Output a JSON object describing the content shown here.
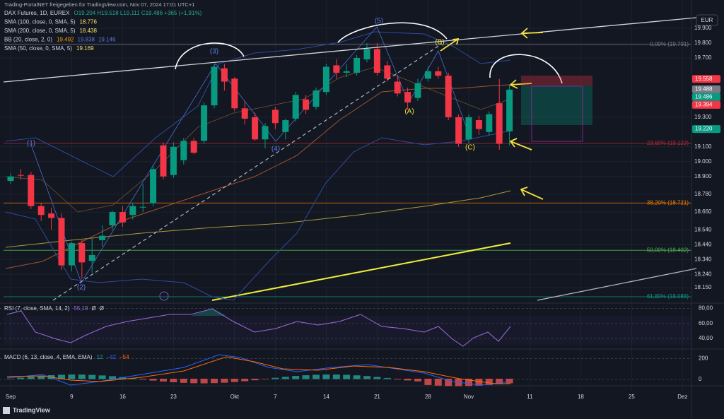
{
  "ui": {
    "header": "Trading-PortalNET freigegeben für TradingView.com, Nov 07, 2024 17:01 UTC+1",
    "currency": "EUR",
    "brand": "TradingView",
    "legend": [
      {
        "label": "DAX Futures, 1D, EUREX",
        "values": [
          {
            "text": "O19.204 H19.518 L19.111 C19.486 +365 (+1,91%)",
            "color": "#22ab94"
          }
        ]
      },
      {
        "label": "SMA (100, close, 0, SMA, 5)",
        "values": [
          {
            "text": "18.776",
            "color": "#f7e26b"
          }
        ]
      },
      {
        "label": "SMA (200, close, 0, SMA, 5)",
        "values": [
          {
            "text": "18.438",
            "color": "#f7e26b"
          }
        ]
      },
      {
        "label": "BB (20, close, 2, 0)",
        "values": [
          {
            "text": "19.492",
            "color": "#ff9800"
          },
          {
            "text": "19.838",
            "color": "#5b7be0"
          },
          {
            "text": "19.146",
            "color": "#5b7be0"
          }
        ]
      },
      {
        "label": "SMA (50, close, 0, SMA, 5)",
        "values": [
          {
            "text": "19.169",
            "color": "#f7e26b"
          }
        ]
      }
    ],
    "waves": [
      "(1)",
      "(2)",
      "(3)",
      "(4)",
      "(5)",
      "(A)",
      "(B)",
      "(C)"
    ],
    "rsi": {
      "title": "RSI (7, close, SMA, 14, 2)",
      "values": [
        {
          "text": "55,19",
          "color": "#9c6ade"
        },
        {
          "text": "Ø",
          "color": "#d1d4dc"
        },
        {
          "text": "Ø",
          "color": "#d1d4dc"
        }
      ],
      "ylim": [
        26,
        87
      ],
      "yticks": [
        {
          "value": 80,
          "label": "80,00"
        },
        {
          "value": 60,
          "label": "60,00"
        },
        {
          "value": 40,
          "label": "40,00"
        }
      ]
    },
    "macd": {
      "title": "MACD (6, 13, close, 4, EMA, EMA)",
      "values": [
        {
          "text": "12",
          "color": "#22ab94"
        },
        {
          "text": "−42",
          "color": "#2962ff"
        },
        {
          "text": "−54",
          "color": "#ff6d00"
        }
      ],
      "ylim": [
        -64,
        293
      ],
      "yticks": [
        200,
        0
      ]
    }
  },
  "chart_data": {
    "type": "candlestick",
    "up_color": "#089981",
    "down_color": "#f23645",
    "grid": true,
    "categories": [
      "Sep",
      null,
      null,
      null,
      null,
      null,
      "9",
      null,
      null,
      null,
      null,
      "16",
      null,
      null,
      null,
      null,
      "23",
      null,
      null,
      null,
      null,
      null,
      "Okt",
      null,
      null,
      null,
      "7",
      null,
      null,
      null,
      null,
      "14",
      null,
      null,
      null,
      null,
      "21",
      null,
      null,
      null,
      null,
      "28",
      null,
      null,
      null,
      "Nov",
      null,
      null,
      null,
      null,
      null,
      "11",
      null,
      null,
      null,
      null,
      "18",
      null,
      null,
      null,
      null,
      "25",
      null,
      null,
      null,
      null,
      "Dez"
    ],
    "open": [
      18870,
      18910,
      18910,
      18700,
      18650,
      18620,
      18300,
      18450,
      18330,
      18470,
      18570,
      18660,
      18640,
      18690,
      18720,
      19110,
      18910,
      19010,
      19140,
      19140,
      19380,
      19630,
      19560,
      19360,
      19300,
      19150,
      19350,
      19200,
      19290,
      19420,
      19370,
      19470,
      19650,
      19600,
      19600,
      19690,
      19760,
      19650,
      19540,
      19470,
      19430,
      19560,
      19610,
      19580,
      19300,
      19150,
      19280,
      19200,
      19394,
      19204,
      null,
      null,
      null,
      null,
      null,
      null,
      null,
      null,
      null,
      null,
      null,
      null,
      null,
      null,
      null,
      null,
      null
    ],
    "high": [
      18920,
      18950,
      18930,
      18720,
      18690,
      18650,
      18460,
      18470,
      18480,
      18570,
      18670,
      18700,
      18720,
      18850,
      18980,
      19130,
      19130,
      19160,
      19160,
      19400,
      19660,
      19660,
      19570,
      19410,
      19330,
      19260,
      19370,
      19290,
      19470,
      19450,
      19500,
      19660,
      19690,
      19660,
      19720,
      19800,
      19800,
      19680,
      19580,
      19500,
      19560,
      19640,
      19640,
      19600,
      19320,
      19320,
      19310,
      19340,
      19558,
      19518,
      null,
      null,
      null,
      null,
      null,
      null,
      null,
      null,
      null,
      null,
      null,
      null,
      null,
      null,
      null,
      null,
      null
    ],
    "low": [
      18850,
      18880,
      18680,
      18600,
      18540,
      18270,
      18260,
      18210,
      18250,
      18430,
      18540,
      18560,
      18610,
      18660,
      18700,
      18880,
      18890,
      18980,
      19050,
      19120,
      19360,
      19480,
      19340,
      19250,
      19140,
      19090,
      19220,
      19150,
      19270,
      19320,
      19350,
      19450,
      19560,
      19570,
      19580,
      19670,
      19580,
      19540,
      19440,
      19350,
      19410,
      19540,
      19560,
      19280,
      19100,
      19120,
      19180,
      19180,
      19080,
      19111,
      null,
      null,
      null,
      null,
      null,
      null,
      null,
      null,
      null,
      null,
      null,
      null,
      null,
      null,
      null,
      null,
      null
    ],
    "close": [
      18900,
      18905,
      18700,
      18640,
      18620,
      18300,
      18450,
      18320,
      18370,
      18500,
      18660,
      18590,
      18700,
      18695,
      18950,
      18900,
      19100,
      19140,
      19060,
      19380,
      19640,
      19540,
      19360,
      19290,
      19150,
      19240,
      19260,
      19280,
      19450,
      19350,
      19480,
      19640,
      19600,
      19610,
      19700,
      19760,
      19600,
      19560,
      19460,
      19400,
      19530,
      19610,
      19580,
      19300,
      19120,
      19300,
      19220,
      19320,
      19120,
      19486,
      null,
      null,
      null,
      null,
      null,
      null,
      null,
      null,
      null,
      null,
      null,
      null,
      null,
      null,
      null,
      null,
      null
    ],
    "ylim": [
      18050,
      20005
    ],
    "yticks": [
      {
        "value": 19900,
        "label": "19.900"
      },
      {
        "value": 19800,
        "label": "19.800"
      },
      {
        "value": 19700,
        "label": "19.700"
      },
      {
        "value": 19300,
        "label": "19.300"
      },
      {
        "value": 19100,
        "label": "19.100"
      },
      {
        "value": 19000,
        "label": "19.000"
      },
      {
        "value": 18900,
        "label": "18.900"
      },
      {
        "value": 18780,
        "label": "18.780"
      },
      {
        "value": 18660,
        "label": "18.660"
      },
      {
        "value": 18540,
        "label": "18.540"
      },
      {
        "value": 18440,
        "label": "18.440"
      },
      {
        "value": 18340,
        "label": "18.340"
      },
      {
        "value": 18240,
        "label": "18.240"
      },
      {
        "value": 18150,
        "label": "18.150"
      }
    ],
    "fib_levels": [
      {
        "value": 19791,
        "label": "0,00% (19.791)",
        "color": "#787b86"
      },
      {
        "value": 19123,
        "label": "23,60% (19.123)",
        "color": "#b22833"
      },
      {
        "value": 18721,
        "label": "38,20% (18.721)",
        "color": "#f57c00"
      },
      {
        "value": 18402,
        "label": "50,00% (18.402)",
        "color": "#4caf50"
      },
      {
        "value": 18088,
        "label": "61,80% (18.088)",
        "color": "#089981"
      }
    ],
    "price_badges": [
      {
        "value": 19558,
        "label": "19.558",
        "color": "#f23645"
      },
      {
        "value": 19488,
        "label": "19.488",
        "color": "#787b86"
      },
      {
        "value": 19486,
        "label": "19.486",
        "color": "#089981"
      },
      {
        "value": 19394,
        "label": "19.394",
        "color": "#f23645"
      },
      {
        "value": 19220,
        "label": "19.220",
        "color": "#089981"
      }
    ]
  }
}
